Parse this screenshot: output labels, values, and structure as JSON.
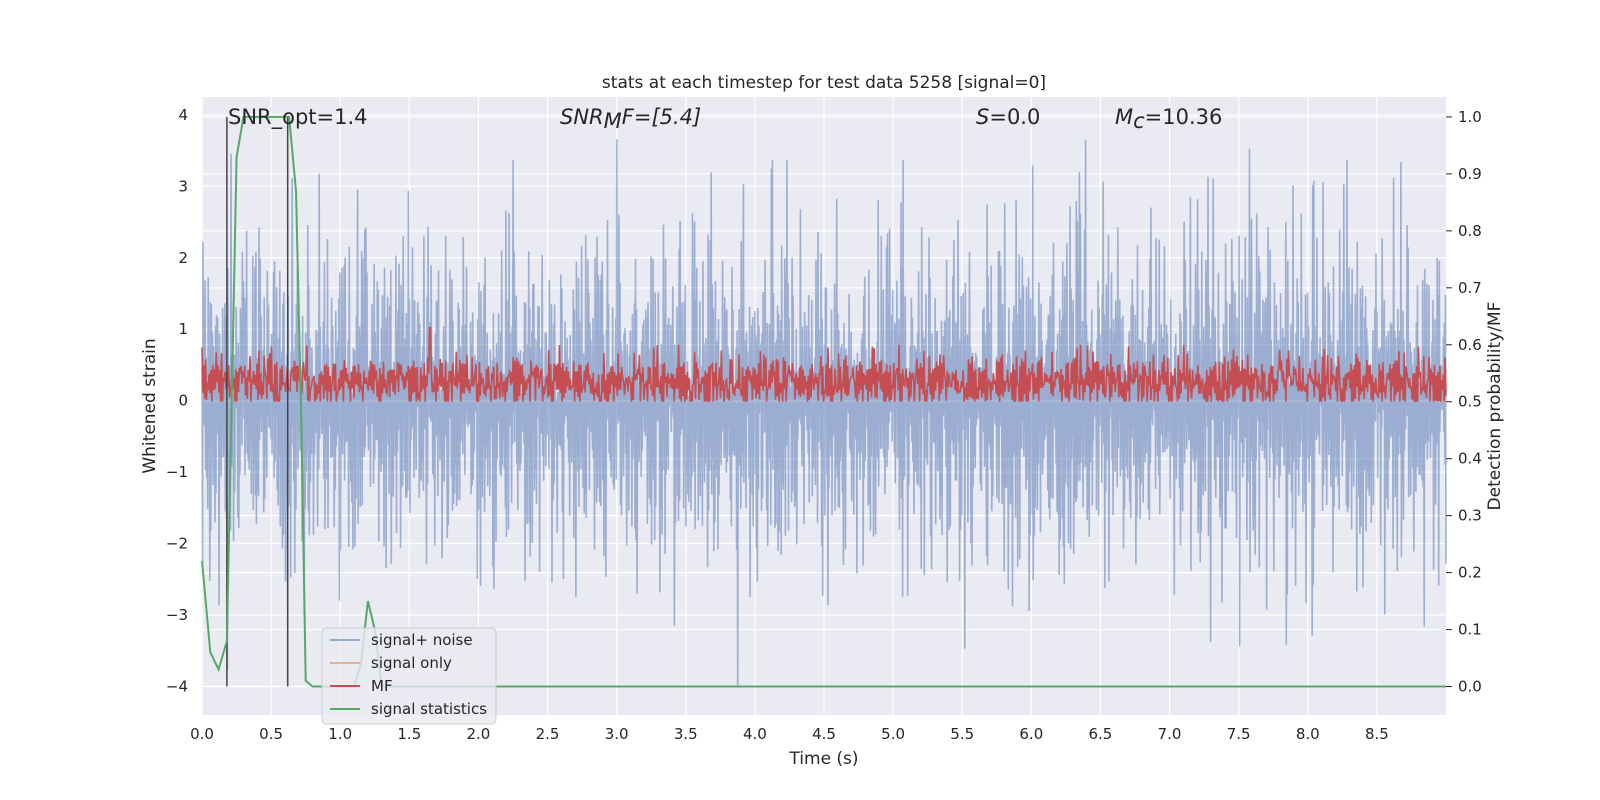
{
  "chart_data": {
    "type": "line",
    "title": "stats at each timestep for test data 5258 [signal=0]",
    "xlabel": "Time (s)",
    "ylabel": "Whitened strain",
    "y2label": "Detection probability/MF",
    "xlim": [
      0,
      9.0
    ],
    "ylim": [
      -4.4,
      4.25
    ],
    "y2lim": [
      -0.05,
      1.035
    ],
    "x_ticks": [
      "0.0",
      "0.5",
      "1.0",
      "1.5",
      "2.0",
      "2.5",
      "3.0",
      "3.5",
      "4.0",
      "4.5",
      "5.0",
      "5.5",
      "6.0",
      "6.5",
      "7.0",
      "7.5",
      "8.0",
      "8.5"
    ],
    "y_ticks": [
      "4",
      "3",
      "2",
      "1",
      "0",
      "−1",
      "−2",
      "−3",
      "−4"
    ],
    "y2_ticks": [
      "1.0",
      "0.9",
      "0.8",
      "0.7",
      "0.6",
      "0.5",
      "0.4",
      "0.3",
      "0.2",
      "0.1",
      "0.0"
    ],
    "grid": true,
    "legend_position": "lower-left",
    "annotations": {
      "snr_opt": "SNR_opt=1.4",
      "snr_mf_main": "SNR",
      "snr_mf_sub": "M",
      "snr_mf_rest": "F=[5.4]",
      "s_var": "S",
      "s_rest": "=0.0",
      "mc_var": "M",
      "mc_sub": "c",
      "mc_rest": "=10.36"
    },
    "vlines_x": [
      0.18,
      0.62
    ],
    "series": [
      {
        "name": "signal+ noise",
        "color": "#4c72b0",
        "axis": "left",
        "description_amplitude": 2.0
      },
      {
        "name": "signal only",
        "color": "#dd8452",
        "axis": "left",
        "values": []
      },
      {
        "name": "MF",
        "color": "#c44e52",
        "axis": "right"
      },
      {
        "name": "signal statistics",
        "color": "#55a868",
        "axis": "right",
        "x": [
          0.0,
          0.06,
          0.12,
          0.18,
          0.25,
          0.3,
          0.35,
          0.4,
          0.45,
          0.5,
          0.55,
          0.6,
          0.63,
          0.68,
          0.72,
          0.75,
          0.8,
          0.85,
          0.9,
          0.95,
          1.0,
          1.1,
          1.15,
          1.2,
          1.25,
          1.3,
          1.35,
          1.4,
          9.0
        ],
        "values": [
          0.22,
          0.06,
          0.03,
          0.08,
          0.93,
          1.0,
          1.0,
          1.0,
          1.0,
          1.0,
          1.0,
          1.0,
          1.0,
          0.87,
          0.45,
          0.01,
          0.0,
          0.0,
          0.0,
          0.0,
          0.0,
          0.0,
          0.04,
          0.15,
          0.1,
          0.0,
          0.0,
          0.0,
          0.0
        ]
      }
    ]
  }
}
